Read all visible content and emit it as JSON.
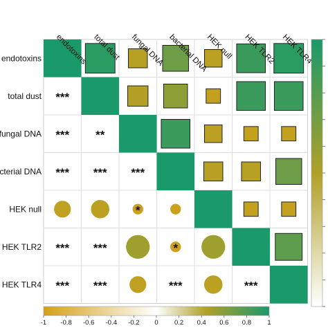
{
  "chart_data": {
    "type": "heatmap",
    "variables": [
      "endotoxins",
      "total dust",
      "fungal DNA",
      "bacterial DNA",
      "HEK null",
      "HEK TLR2",
      "HEK TLR4"
    ],
    "row_labels": [
      "endotoxins",
      "total dust",
      "fungal DNA",
      "bacterial DNA",
      "HEK null",
      "HEK TLR2",
      "HEK TLR4"
    ],
    "column_labels": [
      "endotoxins",
      "total dust",
      "fungal DNA",
      "bacterial DNA",
      "HEK null",
      "HEK TLR2",
      "HEK TLR4"
    ],
    "upper_shape": "square",
    "lower_shape": "circle",
    "matrix": [
      [
        1.0,
        0.85,
        0.35,
        0.65,
        0.3,
        0.8,
        0.85
      ],
      [
        0.85,
        1.0,
        0.4,
        0.55,
        0.2,
        0.8,
        0.8
      ],
      [
        0.35,
        0.4,
        1.0,
        0.8,
        0.3,
        0.2,
        0.2
      ],
      [
        0.65,
        0.55,
        0.8,
        1.0,
        0.35,
        0.35,
        0.65
      ],
      [
        0.3,
        0.2,
        0.3,
        0.35,
        1.0,
        0.2,
        0.2
      ],
      [
        0.8,
        0.8,
        0.2,
        0.35,
        0.2,
        1.0,
        0.7
      ],
      [
        0.85,
        0.8,
        0.2,
        0.65,
        0.2,
        0.7,
        1.0
      ]
    ],
    "lower_circle_values": [
      [
        null,
        null,
        null,
        null,
        null,
        null,
        null
      ],
      [
        null,
        null,
        null,
        null,
        null,
        null,
        null
      ],
      [
        null,
        null,
        null,
        null,
        null,
        null,
        null
      ],
      [
        null,
        null,
        null,
        null,
        null,
        null,
        null
      ],
      [
        0.25,
        0.3,
        0.1,
        0.1,
        null,
        null,
        null
      ],
      [
        null,
        null,
        0.5,
        0.1,
        0.5,
        null,
        null
      ],
      [
        null,
        null,
        0.25,
        null,
        0.3,
        null,
        null
      ]
    ],
    "significance": [
      [
        "",
        "",
        "",
        "",
        "",
        "",
        ""
      ],
      [
        "***",
        "",
        "",
        "",
        "",
        "",
        ""
      ],
      [
        "***",
        "**",
        "",
        "",
        "",
        "",
        ""
      ],
      [
        "***",
        "***",
        "***",
        "",
        "",
        "",
        ""
      ],
      [
        "",
        "",
        "*",
        "",
        "",
        "",
        ""
      ],
      [
        "***",
        "***",
        "",
        "*",
        "",
        "",
        ""
      ],
      [
        "***",
        "***",
        "",
        "***",
        "",
        "***",
        ""
      ]
    ],
    "colorbar_bottom": {
      "range": [
        -1,
        1
      ],
      "ticks": [
        -1,
        -0.8,
        -0.6,
        -0.4,
        -0.2,
        0,
        0.2,
        0.4,
        0.6,
        0.8,
        1
      ],
      "tick_labels": [
        "-1",
        "-0.8",
        "-0.6",
        "-0.4",
        "-0.2",
        "0",
        "0.2",
        "0.4",
        "0.6",
        "0.8",
        "1"
      ]
    },
    "colorbar_right": {
      "range": [
        0,
        1
      ],
      "tick_count": 11
    },
    "colors": {
      "negative": "#d4a017",
      "zero": "#ffffff",
      "mid": "#b0a028",
      "positive": "#1a9a6b"
    },
    "grid": true,
    "legend_placement": "bottom-and-right"
  }
}
